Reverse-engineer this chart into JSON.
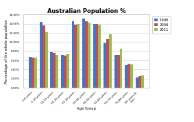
{
  "title": "Australian Population %",
  "xlabel": "Age Group",
  "ylabel": "Percentage of the whole population",
  "categories": [
    "0-4 years",
    "5-14 years",
    "15-19 years",
    "20-24 years",
    "25-34 years",
    "35-44 years",
    "45-54 years",
    "55-64 years",
    "65-74 years",
    "75-84 years",
    "85 years &\nover"
  ],
  "series": [
    {
      "name": "1996",
      "color": "#4472C4",
      "values": [
        6.8,
        14.4,
        7.8,
        7.2,
        14.6,
        15.2,
        13.9,
        9.8,
        7.2,
        5.0,
        2.2
      ]
    },
    {
      "name": "2006",
      "color": "#C0504D",
      "values": [
        6.6,
        13.7,
        7.6,
        7.1,
        13.8,
        14.6,
        13.9,
        10.7,
        7.2,
        5.3,
        2.5
      ]
    },
    {
      "name": "2011",
      "color": "#9BBB59",
      "values": [
        6.6,
        12.2,
        7.2,
        7.3,
        13.9,
        14.2,
        13.8,
        11.7,
        8.5,
        5.1,
        2.7
      ]
    }
  ],
  "ylim": [
    0,
    16
  ],
  "ytick_labels": [
    "0.00%",
    "2.00%",
    "4.00%",
    "6.00%",
    "8.00%",
    "10.00%",
    "12.00%",
    "14.00%",
    "16.00%"
  ],
  "ytick_vals": [
    0,
    2,
    4,
    6,
    8,
    10,
    12,
    14,
    16
  ],
  "background_color": "#FFFFFF",
  "plot_bg_color": "#FFFFFF",
  "grid_color": "#C8C8C8",
  "title_fontsize": 6,
  "axis_label_fontsize": 3.8,
  "tick_fontsize": 3.0,
  "legend_fontsize": 3.8,
  "bar_width": 0.25
}
